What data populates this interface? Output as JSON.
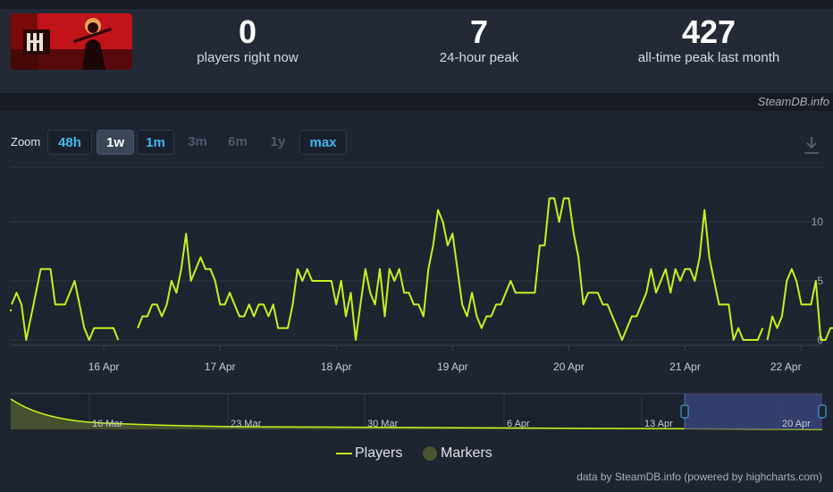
{
  "stats": [
    {
      "value": "0",
      "label": "players right now"
    },
    {
      "value": "7",
      "label": "24-hour peak"
    },
    {
      "value": "427",
      "label": "all-time peak last month"
    }
  ],
  "credit_top": "SteamDB.info",
  "zoom": {
    "label": "Zoom",
    "buttons": [
      {
        "label": "48h",
        "state": "enabled"
      },
      {
        "label": "1w",
        "state": "active"
      },
      {
        "label": "1m",
        "state": "enabled"
      },
      {
        "label": "3m",
        "state": "disabled"
      },
      {
        "label": "6m",
        "state": "disabled"
      },
      {
        "label": "1y",
        "state": "disabled"
      },
      {
        "label": "max",
        "state": "enabled"
      }
    ]
  },
  "legend": {
    "players": "Players",
    "markers": "Markers"
  },
  "footer_credit": "data by SteamDB.info (powered by highcharts.com)",
  "colors": {
    "line": "#c8f21c",
    "grid": "#2f3646",
    "axis_text": "#9aa3b1",
    "navigator_fill": "#4a5630",
    "selection": "#3c4882"
  },
  "chart_data": {
    "type": "line",
    "title": "",
    "xlabel": "",
    "ylabel": "",
    "y_ticks": [
      0,
      5,
      10
    ],
    "ylim": [
      0,
      11
    ],
    "x_ticks": [
      "16 Apr",
      "17 Apr",
      "18 Apr",
      "19 Apr",
      "20 Apr",
      "21 Apr",
      "22 Apr"
    ],
    "x_range_days": [
      15.2,
      22.18
    ],
    "series": [
      {
        "name": "Players",
        "segments": [
          [
            [
              15.208,
              3
            ],
            [
              15.25,
              4
            ],
            [
              15.292,
              3
            ],
            [
              15.333,
              0
            ],
            [
              15.375,
              2
            ],
            [
              15.417,
              4
            ],
            [
              15.458,
              6
            ],
            [
              15.5,
              6
            ],
            [
              15.542,
              6
            ],
            [
              15.583,
              3
            ],
            [
              15.625,
              3
            ],
            [
              15.667,
              3
            ],
            [
              15.708,
              4
            ],
            [
              15.75,
              5
            ],
            [
              15.792,
              3
            ],
            [
              15.833,
              1
            ],
            [
              15.875,
              0
            ],
            [
              15.917,
              1
            ],
            [
              15.958,
              1
            ],
            [
              16.0,
              1
            ],
            [
              16.042,
              1
            ],
            [
              16.083,
              1
            ],
            [
              16.125,
              0
            ]
          ],
          [
            [
              16.292,
              1
            ],
            [
              16.333,
              2
            ],
            [
              16.375,
              2
            ],
            [
              16.417,
              3
            ],
            [
              16.458,
              3
            ],
            [
              16.5,
              2
            ],
            [
              16.542,
              3
            ],
            [
              16.583,
              5
            ],
            [
              16.625,
              4
            ],
            [
              16.667,
              6
            ],
            [
              16.708,
              9
            ],
            [
              16.75,
              5
            ],
            [
              16.792,
              6
            ],
            [
              16.833,
              7
            ],
            [
              16.875,
              6
            ],
            [
              16.917,
              6
            ],
            [
              16.958,
              5
            ],
            [
              17.0,
              3
            ],
            [
              17.042,
              3
            ],
            [
              17.083,
              4
            ],
            [
              17.125,
              3
            ],
            [
              17.167,
              2
            ],
            [
              17.208,
              2
            ],
            [
              17.25,
              3
            ],
            [
              17.292,
              2
            ],
            [
              17.333,
              3
            ],
            [
              17.375,
              3
            ],
            [
              17.417,
              2
            ],
            [
              17.458,
              3
            ],
            [
              17.5,
              1
            ],
            [
              17.542,
              1
            ],
            [
              17.583,
              1
            ],
            [
              17.625,
              3
            ],
            [
              17.667,
              6
            ],
            [
              17.708,
              5
            ],
            [
              17.75,
              6
            ],
            [
              17.792,
              5
            ],
            [
              17.833,
              5
            ],
            [
              17.875,
              5
            ],
            [
              17.917,
              5
            ],
            [
              17.958,
              5
            ],
            [
              18.0,
              3
            ],
            [
              18.042,
              5
            ],
            [
              18.083,
              2
            ],
            [
              18.125,
              4
            ],
            [
              18.167,
              0
            ],
            [
              18.208,
              3
            ],
            [
              18.25,
              6
            ],
            [
              18.292,
              4
            ],
            [
              18.333,
              3
            ],
            [
              18.375,
              6
            ],
            [
              18.417,
              2
            ],
            [
              18.458,
              6
            ],
            [
              18.5,
              5
            ],
            [
              18.542,
              6
            ],
            [
              18.583,
              4
            ],
            [
              18.625,
              4
            ],
            [
              18.667,
              3
            ],
            [
              18.708,
              3
            ],
            [
              18.75,
              2
            ],
            [
              18.792,
              6
            ],
            [
              18.833,
              8
            ],
            [
              18.875,
              11
            ],
            [
              18.917,
              10
            ],
            [
              18.958,
              8
            ],
            [
              19.0,
              9
            ],
            [
              19.042,
              6
            ],
            [
              19.083,
              3
            ],
            [
              19.125,
              2
            ],
            [
              19.167,
              4
            ],
            [
              19.208,
              2
            ],
            [
              19.25,
              1
            ],
            [
              19.292,
              2
            ],
            [
              19.333,
              2
            ],
            [
              19.375,
              3
            ],
            [
              19.417,
              3
            ],
            [
              19.458,
              4
            ],
            [
              19.5,
              5
            ],
            [
              19.542,
              4
            ],
            [
              19.583,
              4
            ],
            [
              19.625,
              4
            ],
            [
              19.667,
              4
            ],
            [
              19.708,
              4
            ],
            [
              19.75,
              8
            ],
            [
              19.792,
              8
            ],
            [
              19.833,
              12
            ],
            [
              19.875,
              12
            ],
            [
              19.917,
              10
            ],
            [
              19.958,
              12
            ],
            [
              20.0,
              12
            ],
            [
              20.042,
              9
            ],
            [
              20.083,
              7
            ],
            [
              20.125,
              3
            ],
            [
              20.167,
              4
            ],
            [
              20.208,
              4
            ],
            [
              20.25,
              4
            ],
            [
              20.292,
              3
            ],
            [
              20.333,
              3
            ],
            [
              20.375,
              2
            ],
            [
              20.417,
              1
            ],
            [
              20.458,
              0
            ],
            [
              20.5,
              1
            ],
            [
              20.542,
              2
            ],
            [
              20.583,
              2
            ],
            [
              20.625,
              3
            ],
            [
              20.667,
              4
            ],
            [
              20.708,
              6
            ],
            [
              20.75,
              4
            ],
            [
              20.792,
              5
            ],
            [
              20.833,
              6
            ],
            [
              20.875,
              4
            ],
            [
              20.917,
              6
            ],
            [
              20.958,
              5
            ],
            [
              21.0,
              6
            ],
            [
              21.042,
              6
            ],
            [
              21.083,
              5
            ],
            [
              21.125,
              7
            ],
            [
              21.167,
              11
            ],
            [
              21.208,
              7
            ],
            [
              21.25,
              5
            ],
            [
              21.292,
              3
            ],
            [
              21.333,
              3
            ],
            [
              21.375,
              3
            ],
            [
              21.417,
              0
            ],
            [
              21.458,
              1
            ],
            [
              21.5,
              0
            ],
            [
              21.542,
              0
            ],
            [
              21.583,
              0
            ],
            [
              21.625,
              0
            ],
            [
              21.667,
              1
            ]
          ],
          [
            [
              21.708,
              0
            ],
            [
              21.75,
              2
            ],
            [
              21.792,
              1
            ],
            [
              21.833,
              2
            ],
            [
              21.875,
              5
            ],
            [
              21.917,
              6
            ],
            [
              21.958,
              5
            ],
            [
              22.0,
              3
            ],
            [
              22.042,
              3
            ],
            [
              22.083,
              3
            ],
            [
              22.125,
              5
            ],
            [
              22.167,
              0
            ],
            [
              22.208,
              0
            ],
            [
              22.25,
              1
            ],
            [
              22.292,
              1
            ],
            [
              22.333,
              1
            ]
          ]
        ]
      }
    ],
    "navigator": {
      "x_ticks": [
        "16 Mar",
        "23 Mar",
        "30 Mar",
        "6 Apr",
        "13 Apr",
        "20 Apr"
      ]
    }
  }
}
